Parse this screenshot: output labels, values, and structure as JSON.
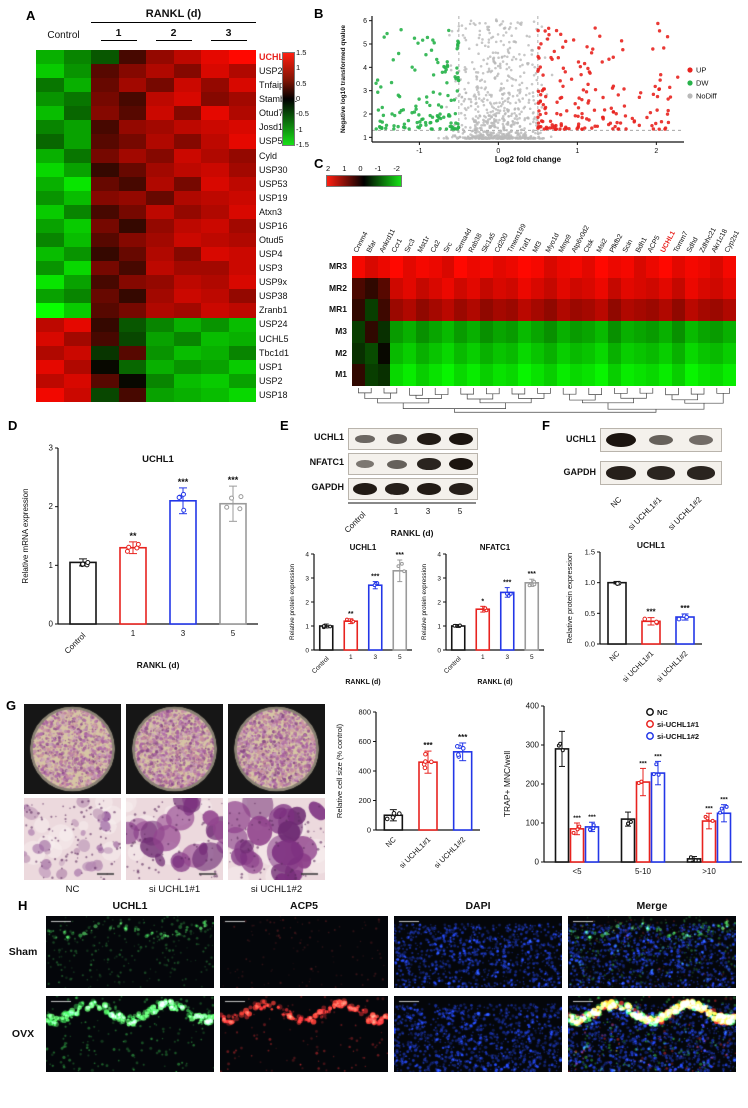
{
  "panels": {
    "A": {
      "label": "A",
      "header": "RANKL (d)",
      "control_label": "Control",
      "day_labels": [
        "1",
        "2",
        "3"
      ],
      "highlight_gene": "UCHL1",
      "highlight_color": "#e8231f"
    },
    "B": {
      "label": "B"
    },
    "C": {
      "label": "C",
      "highlight_col": "UCHL1",
      "highlight_color": "#e8231f"
    },
    "D": {
      "label": "D"
    },
    "E": {
      "label": "E"
    },
    "F": {
      "label": "F"
    },
    "G": {
      "label": "G",
      "image_labels": [
        "NC",
        "si UCHL1#1",
        "si UCHL1#2"
      ]
    },
    "H": {
      "label": "H",
      "col_headers": [
        "UCHL1",
        "ACP5",
        "DAPI",
        "Merge"
      ],
      "row_labels": [
        "Sham",
        "OVX"
      ]
    }
  },
  "chart_data": [
    {
      "id": "heatmap-a",
      "type": "heatmap",
      "title": "RANKL (d)",
      "col_groups": [
        "Control",
        "1",
        "2",
        "3"
      ],
      "row_labels": [
        "UCHL1",
        "USP20",
        "Tnfaip3",
        "Stambpl1",
        "Otud7b",
        "Josd1",
        "USP54",
        "Cyld",
        "USP30",
        "USP53",
        "USP19",
        "Atxn3",
        "USP16",
        "Otud5",
        "USP4",
        "USP3",
        "USP9x",
        "USP38",
        "Zranb1",
        "USP24",
        "UCHL5",
        "Tbc1d1",
        "USP1",
        "USP2",
        "USP18"
      ],
      "highlight_row": "UCHL1",
      "vmax": 1.5,
      "colorbar_ticks": [
        "1.5",
        "1",
        "0.5",
        "0",
        "-0.5",
        "-1",
        "-1.5"
      ],
      "values": [
        [
          -0.9,
          -0.6,
          -0.3,
          0.2,
          0.7,
          1.0,
          1.3,
          1.5
        ],
        [
          -1.1,
          -0.7,
          0.3,
          0.6,
          0.9,
          0.6,
          1.2,
          0.9
        ],
        [
          -0.5,
          -0.9,
          0.4,
          0.8,
          0.5,
          1.1,
          0.7,
          1.2
        ],
        [
          -0.7,
          -0.5,
          0.5,
          0.2,
          1.0,
          1.2,
          0.6,
          0.8
        ],
        [
          -1.0,
          -0.4,
          0.6,
          0.3,
          1.1,
          0.6,
          1.3,
          0.9
        ],
        [
          -0.6,
          -0.8,
          0.2,
          0.7,
          0.8,
          1.0,
          1.1,
          1.2
        ],
        [
          -0.4,
          -0.8,
          0.3,
          0.5,
          0.9,
          0.6,
          1.0,
          1.3
        ],
        [
          -0.9,
          -0.5,
          0.5,
          0.8,
          0.6,
          1.1,
          0.9,
          0.7
        ],
        [
          -1.2,
          -0.8,
          0.1,
          0.4,
          0.8,
          1.0,
          1.1,
          0.8
        ],
        [
          -0.9,
          -1.3,
          0.4,
          0.2,
          0.9,
          0.5,
          1.2,
          1.0
        ],
        [
          -0.7,
          -1.0,
          0.6,
          0.7,
          0.4,
          0.9,
          1.0,
          1.1
        ],
        [
          -1.1,
          -0.6,
          0.2,
          0.5,
          1.0,
          0.7,
          0.9,
          1.2
        ],
        [
          -0.8,
          -1.1,
          0.5,
          0.1,
          0.7,
          1.0,
          1.1,
          0.8
        ],
        [
          -0.6,
          -1.0,
          0.3,
          0.6,
          0.8,
          1.1,
          1.0,
          0.9
        ],
        [
          -1.0,
          -0.7,
          0.1,
          0.4,
          0.9,
          0.6,
          1.2,
          1.1
        ],
        [
          -0.7,
          -1.2,
          0.5,
          0.2,
          1.0,
          0.8,
          0.8,
          1.1
        ],
        [
          -1.3,
          -0.8,
          0.2,
          0.6,
          0.7,
          1.0,
          0.9,
          1.2
        ],
        [
          -0.8,
          -0.6,
          0.4,
          0.1,
          0.8,
          1.1,
          1.0,
          0.7
        ],
        [
          -1.5,
          -1.1,
          0.3,
          0.5,
          0.9,
          0.8,
          1.1,
          1.0
        ],
        [
          1.0,
          1.3,
          0.1,
          -0.3,
          -0.6,
          -0.9,
          -0.7,
          -1.0
        ],
        [
          1.2,
          0.8,
          0.2,
          -0.2,
          -0.8,
          -0.6,
          -1.0,
          -0.9
        ],
        [
          0.9,
          1.1,
          -0.1,
          0.3,
          -0.7,
          -1.0,
          -0.9,
          -0.6
        ],
        [
          1.3,
          0.9,
          0.0,
          -0.4,
          -0.9,
          -0.7,
          -0.8,
          -1.1
        ],
        [
          1.0,
          1.2,
          0.3,
          0.0,
          -0.6,
          -1.0,
          -1.1,
          -0.8
        ],
        [
          1.4,
          1.1,
          -0.2,
          0.2,
          -0.8,
          -0.9,
          -1.0,
          -1.2
        ]
      ]
    },
    {
      "id": "volcano-b",
      "type": "scatter",
      "xlabel": "Log2 fold change",
      "ylabel": "Negative log10 transformed qvalue",
      "xlim": [
        -1.6,
        2.35
      ],
      "ylim": [
        0.8,
        6.2
      ],
      "xticks": [
        "-1",
        "0",
        "1",
        "2"
      ],
      "yticks": [
        "1",
        "2",
        "3",
        "4",
        "5",
        "6"
      ],
      "thresholds": {
        "x": [
          -0.5,
          0.5
        ],
        "y": 1.3
      },
      "groups": [
        {
          "name": "UP",
          "color": "#e8231f",
          "count": 180
        },
        {
          "name": "DW",
          "color": "#27b24a",
          "count": 130
        },
        {
          "name": "NoDiff",
          "color": "#b9b9b9",
          "count": 700
        }
      ]
    },
    {
      "id": "heatmap-c",
      "type": "heatmap",
      "vmax": 2,
      "colorbar_ticks": [
        "2",
        "1",
        "0",
        "-1",
        "-2"
      ],
      "col_labels": [
        "Cnnm4",
        "Bfar",
        "Ankrd11",
        "Ccr1",
        "Src3",
        "Mst1r",
        "Ca2",
        "Src",
        "Sema4d",
        "Rab38",
        "Slc1a5",
        "Cd200",
        "Tmem199",
        "Traf1",
        "Mf3",
        "Myo1d",
        "Mmp9",
        "Atp6v0d2",
        "Ctsk",
        "Msi2",
        "Pfkfb2",
        "Scin",
        "Bdh1",
        "ACP5",
        "UCHL1",
        "Tomm7",
        "Sdhd",
        "Zdhhc21",
        "Akr1c18",
        "Cyp2s1"
      ],
      "row_labels": [
        "MR3",
        "MR2",
        "MR1",
        "M3",
        "M2",
        "M1"
      ],
      "highlight_col": "UCHL1",
      "values": [
        [
          1.9,
          1.6,
          1.8,
          2.0,
          1.7,
          1.9,
          1.8,
          1.6,
          2.0,
          1.8,
          1.9,
          1.7,
          1.8,
          2.0,
          1.9,
          1.6,
          1.8,
          1.9,
          1.7,
          2.0,
          1.8,
          1.9,
          1.6,
          1.8,
          2.0,
          1.7,
          1.9,
          1.8,
          1.6,
          1.9
        ],
        [
          0.3,
          0.1,
          0.4,
          1.5,
          1.7,
          1.4,
          1.6,
          1.8,
          1.5,
          1.7,
          1.4,
          1.6,
          1.5,
          1.8,
          1.6,
          1.4,
          1.7,
          1.5,
          1.6,
          1.8,
          1.4,
          1.7,
          1.6,
          1.5,
          1.7,
          1.4,
          1.8,
          1.6,
          1.5,
          1.7
        ],
        [
          0.1,
          -0.2,
          0.2,
          1.0,
          1.2,
          0.9,
          1.1,
          1.3,
          1.0,
          1.2,
          0.9,
          1.1,
          1.0,
          1.3,
          1.1,
          0.9,
          1.2,
          1.0,
          1.1,
          1.3,
          0.9,
          1.2,
          1.1,
          1.0,
          1.2,
          0.9,
          1.3,
          1.1,
          1.0,
          1.2
        ],
        [
          -0.2,
          0.1,
          -0.1,
          -1.0,
          -1.2,
          -0.9,
          -1.1,
          -1.3,
          -1.0,
          -1.2,
          -0.9,
          -1.1,
          -1.0,
          -1.3,
          -1.1,
          -0.9,
          -1.2,
          -1.0,
          -1.1,
          -1.3,
          -0.9,
          -1.2,
          -1.1,
          -1.0,
          -1.2,
          -0.9,
          -1.3,
          -1.1,
          -1.0,
          -1.2
        ],
        [
          -0.1,
          -0.3,
          0.0,
          -1.3,
          -1.5,
          -1.2,
          -1.4,
          -1.6,
          -1.3,
          -1.5,
          -1.2,
          -1.4,
          -1.3,
          -1.6,
          -1.4,
          -1.2,
          -1.5,
          -1.3,
          -1.4,
          -1.6,
          -1.2,
          -1.5,
          -1.4,
          -1.3,
          -1.5,
          -1.2,
          -1.6,
          -1.4,
          -1.3,
          -1.5
        ],
        [
          0.1,
          -0.2,
          -0.1,
          -1.6,
          -1.8,
          -1.5,
          -1.7,
          -1.9,
          -1.6,
          -1.8,
          -1.5,
          -1.7,
          -1.6,
          -1.9,
          -1.7,
          -1.5,
          -1.8,
          -1.6,
          -1.7,
          -1.9,
          -1.5,
          -1.8,
          -1.7,
          -1.6,
          -1.8,
          -1.5,
          -1.9,
          -1.7,
          -1.6,
          -1.8
        ]
      ]
    },
    {
      "id": "bar-d",
      "type": "bar",
      "title": "UCHL1",
      "ylabel": "Relative mRNA expression",
      "xlabel": "RANKL (d)",
      "categories": [
        "Control",
        "1",
        "3",
        "5"
      ],
      "values": [
        1.05,
        1.3,
        2.1,
        2.05
      ],
      "errors": [
        0.06,
        0.1,
        0.22,
        0.3
      ],
      "sig": [
        "",
        "**",
        "***",
        "***"
      ],
      "colors": [
        "#141414",
        "#e8231f",
        "#2337e8",
        "#9b9b9b"
      ],
      "ylim": [
        0,
        3
      ],
      "yticks": [
        "0",
        "1",
        "2",
        "3"
      ]
    },
    {
      "id": "bar-e1",
      "type": "bar",
      "title": "UCHL1",
      "ylabel": "Relative protein expression",
      "xlabel": "RANKL (d)",
      "categories": [
        "Control",
        "1",
        "3",
        "5"
      ],
      "values": [
        1.0,
        1.2,
        2.7,
        3.3
      ],
      "errors": [
        0.08,
        0.1,
        0.15,
        0.45
      ],
      "sig": [
        "",
        "**",
        "***",
        "***"
      ],
      "colors": [
        "#141414",
        "#e8231f",
        "#2337e8",
        "#9b9b9b"
      ],
      "ylim": [
        0,
        4
      ],
      "yticks": [
        "0",
        "1",
        "2",
        "3",
        "4"
      ]
    },
    {
      "id": "bar-e2",
      "type": "bar",
      "title": "NFATC1",
      "ylabel": "Relative protein expression",
      "xlabel": "RANKL (d)",
      "categories": [
        "Control",
        "1",
        "3",
        "5"
      ],
      "values": [
        1.0,
        1.7,
        2.4,
        2.8
      ],
      "errors": [
        0.06,
        0.12,
        0.2,
        0.15
      ],
      "sig": [
        "",
        "*",
        "***",
        "***"
      ],
      "colors": [
        "#141414",
        "#e8231f",
        "#2337e8",
        "#9b9b9b"
      ],
      "ylim": [
        0,
        4
      ],
      "yticks": [
        "0",
        "1",
        "2",
        "3",
        "4"
      ]
    },
    {
      "id": "bar-f",
      "type": "bar",
      "title": "UCHL1",
      "ylabel": "Relative protein expression",
      "categories": [
        "NC",
        "si UCHL1#1",
        "si UCHL1#2"
      ],
      "values": [
        1.0,
        0.37,
        0.44
      ],
      "errors": [
        0.02,
        0.06,
        0.05
      ],
      "sig": [
        "",
        "***",
        "***"
      ],
      "colors": [
        "#141414",
        "#e8231f",
        "#2337e8"
      ],
      "ylim": [
        0,
        1.5
      ],
      "yticks": [
        "0.0",
        "0.5",
        "1.0",
        "1.5"
      ]
    },
    {
      "id": "bar-g1",
      "type": "bar",
      "ylabel": "Relative cell size (% control)",
      "categories": [
        "NC",
        "si UCHL1#1",
        "si UCHL1#2"
      ],
      "values": [
        100,
        460,
        530
      ],
      "errors": [
        38,
        75,
        60
      ],
      "sig": [
        "",
        "***",
        "***"
      ],
      "colors": [
        "#141414",
        "#e8231f",
        "#2337e8"
      ],
      "ylim": [
        0,
        800
      ],
      "yticks": [
        "0",
        "200",
        "400",
        "600",
        "800"
      ]
    },
    {
      "id": "bar-g2",
      "type": "grouped-bar",
      "ylabel": "TRAP+ MNC/well",
      "categories": [
        "<5",
        "5-10",
        ">10"
      ],
      "series": [
        {
          "name": "NC",
          "color": "#141414",
          "values": [
            290,
            110,
            8
          ],
          "errors": [
            45,
            18,
            6
          ],
          "sig": [
            "",
            "",
            ""
          ]
        },
        {
          "name": "si-UCHL1#1",
          "color": "#e8231f",
          "values": [
            85,
            205,
            105
          ],
          "errors": [
            15,
            35,
            20
          ],
          "sig": [
            "***",
            "***",
            "***"
          ]
        },
        {
          "name": "si-UCHL1#2",
          "color": "#2337e8",
          "values": [
            90,
            228,
            125
          ],
          "errors": [
            12,
            30,
            22
          ],
          "sig": [
            "***",
            "***",
            "***"
          ]
        }
      ],
      "ylim": [
        0,
        400
      ],
      "yticks": [
        "0",
        "100",
        "200",
        "300",
        "400"
      ]
    },
    {
      "id": "blots-e",
      "type": "western-blot",
      "rows": [
        {
          "name": "UCHL1",
          "intensities": [
            0.45,
            0.55,
            0.95,
            1.0
          ]
        },
        {
          "name": "NFATC1",
          "intensities": [
            0.35,
            0.5,
            0.9,
            1.0
          ]
        },
        {
          "name": "GAPDH",
          "intensities": [
            0.95,
            0.92,
            0.95,
            0.93
          ]
        }
      ],
      "lanes": [
        "Control",
        "1",
        "3",
        "5"
      ],
      "xlabel": "RANKL (d)"
    },
    {
      "id": "blots-f",
      "type": "western-blot",
      "rows": [
        {
          "name": "UCHL1",
          "intensities": [
            1.0,
            0.5,
            0.42
          ]
        },
        {
          "name": "GAPDH",
          "intensities": [
            0.92,
            0.9,
            0.9
          ]
        }
      ],
      "lanes": [
        "NC",
        "si UCHL1#1",
        "si UCHL1#2"
      ]
    }
  ]
}
